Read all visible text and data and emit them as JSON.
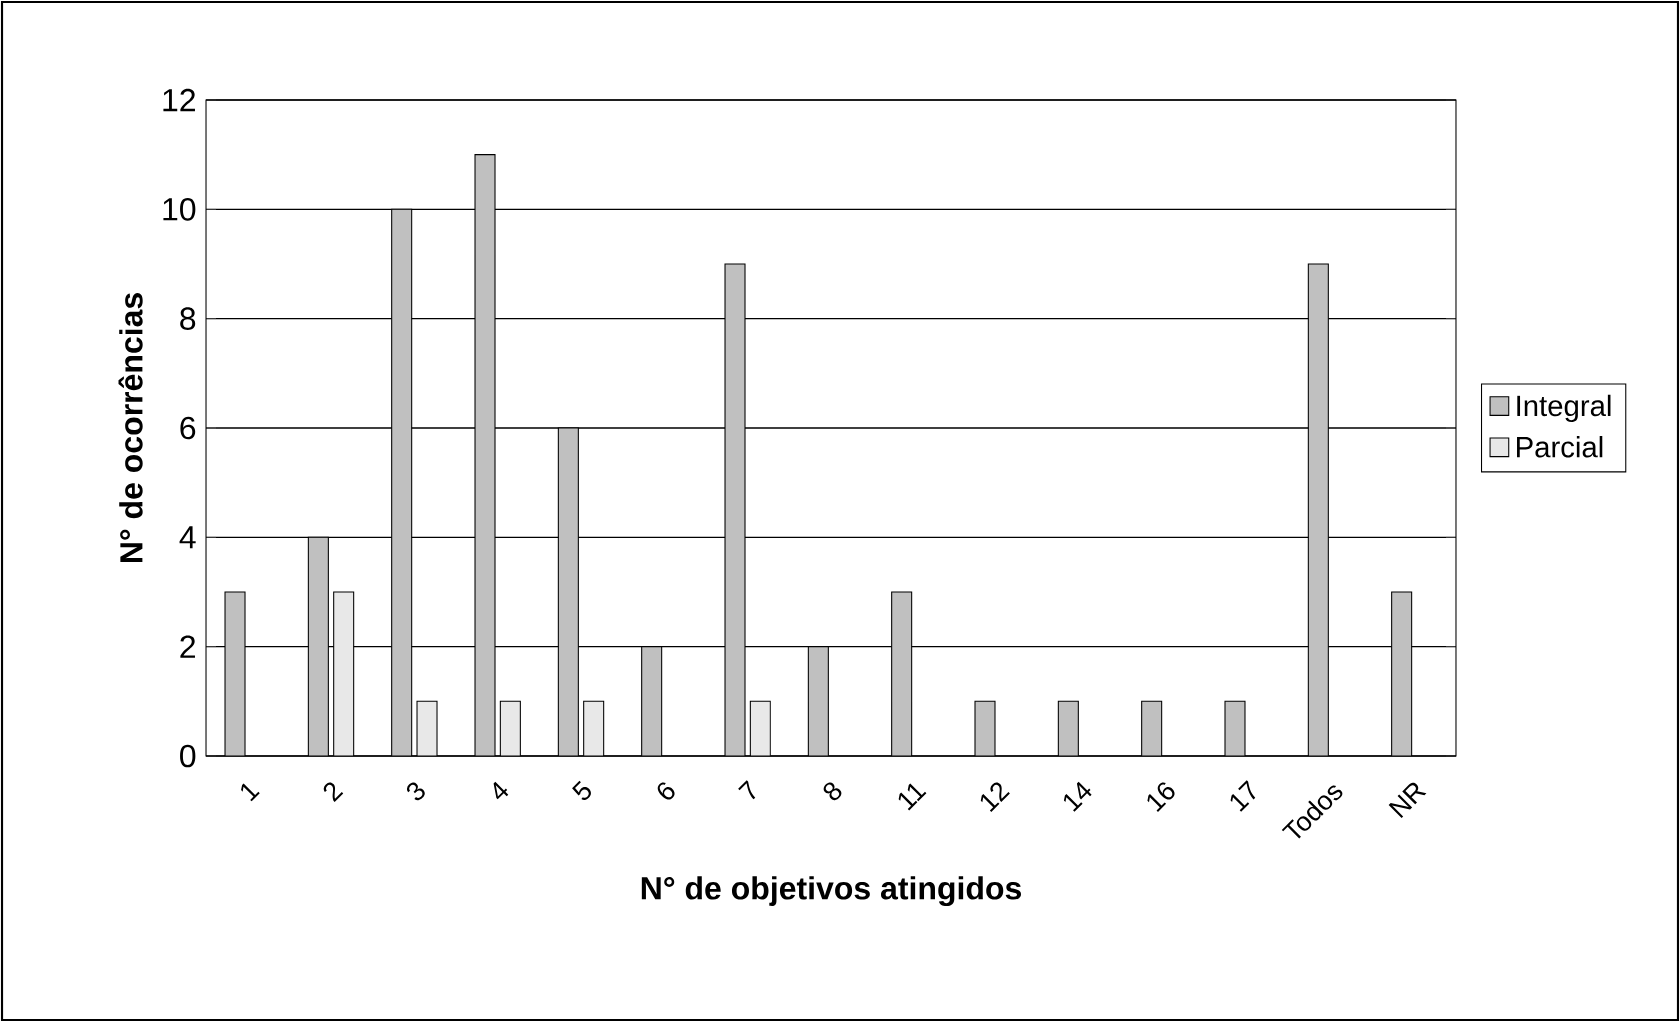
{
  "chart_data": {
    "type": "bar",
    "xlabel": "N° de objetivos atingidos",
    "ylabel": "N° de ocorrências",
    "categories": [
      "1",
      "2",
      "3",
      "4",
      "5",
      "6",
      "7",
      "8",
      "11",
      "12",
      "14",
      "16",
      "17",
      "Todos",
      "NR"
    ],
    "series": [
      {
        "name": "Integral",
        "color": "#c0c0c0",
        "values": [
          3,
          4,
          10,
          11,
          6,
          2,
          9,
          2,
          3,
          1,
          1,
          1,
          1,
          9,
          3
        ]
      },
      {
        "name": "Parcial",
        "color": "#e8e8e8",
        "values": [
          null,
          3,
          1,
          1,
          1,
          null,
          1,
          null,
          null,
          null,
          null,
          null,
          null,
          null,
          null
        ]
      }
    ],
    "ylim": [
      0,
      12
    ],
    "yticks": [
      0,
      2,
      4,
      6,
      8,
      10,
      12
    ],
    "grid": "y",
    "legend": "right"
  }
}
